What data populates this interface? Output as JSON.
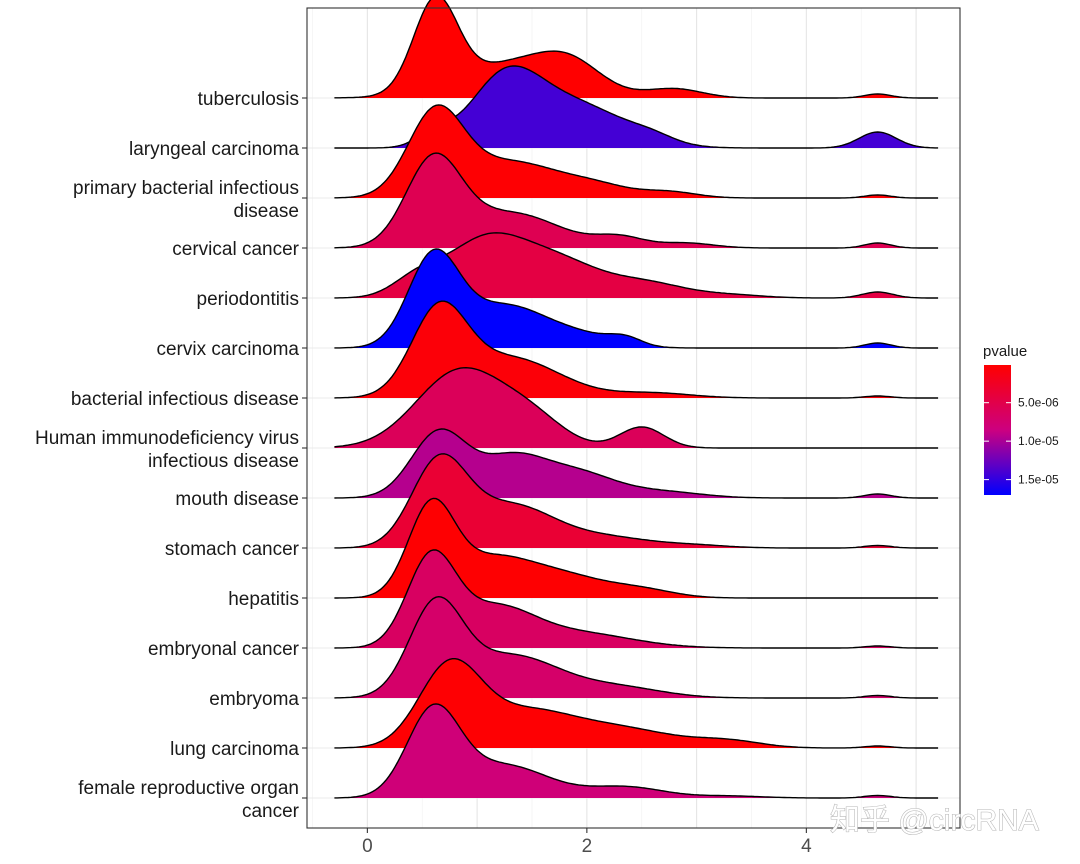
{
  "chart_data": {
    "type": "ridgeline",
    "x_ticks": [
      0,
      2,
      4
    ],
    "xlim": [
      -0.55,
      5.4
    ],
    "grid": true,
    "legend": {
      "title": "pvalue",
      "position": "right",
      "ticks": [
        {
          "label": "5.0e-06",
          "value": 5e-06
        },
        {
          "label": "1.0e-05",
          "value": 1e-05
        },
        {
          "label": "1.5e-05",
          "value": 1.5e-05
        }
      ],
      "range": [
        1e-07,
        1.7e-05
      ],
      "color_low": "#ff0000",
      "color_mid": "#cc0080",
      "color_high": "#0000ff"
    },
    "series": [
      {
        "name": "tuberculosis",
        "pvalue": 1e-07,
        "peaks": [
          [
            0.62,
            1.8,
            0.2
          ],
          [
            1.35,
            0.7,
            0.5
          ],
          [
            1.85,
            0.45,
            0.28
          ],
          [
            2.8,
            0.18,
            0.25
          ],
          [
            4.65,
            0.08,
            0.12
          ]
        ]
      },
      {
        "name": "laryngeal carcinoma",
        "pvalue": 1.42e-05,
        "peaks": [
          [
            0.6,
            0.25,
            0.15
          ],
          [
            1.25,
            1.3,
            0.32
          ],
          [
            1.9,
            0.85,
            0.45
          ],
          [
            2.6,
            0.12,
            0.2
          ],
          [
            4.65,
            0.32,
            0.17
          ]
        ]
      },
      {
        "name": "primary bacterial infectious disease",
        "pvalue": 3e-07,
        "peaks": [
          [
            0.62,
            1.62,
            0.25
          ],
          [
            1.3,
            0.72,
            0.45
          ],
          [
            2.1,
            0.2,
            0.3
          ],
          [
            2.75,
            0.12,
            0.25
          ],
          [
            4.65,
            0.06,
            0.12
          ]
        ]
      },
      {
        "name": "cervical cancer",
        "pvalue": 5.5e-06,
        "peaks": [
          [
            0.6,
            1.68,
            0.25
          ],
          [
            1.3,
            0.7,
            0.45
          ],
          [
            2.3,
            0.2,
            0.22
          ],
          [
            2.9,
            0.1,
            0.25
          ],
          [
            4.65,
            0.1,
            0.12
          ]
        ]
      },
      {
        "name": "periodontitis",
        "pvalue": 4.5e-06,
        "peaks": [
          [
            0.45,
            0.35,
            0.22
          ],
          [
            1.05,
            1.05,
            0.35
          ],
          [
            1.7,
            0.75,
            0.4
          ],
          [
            2.55,
            0.28,
            0.35
          ],
          [
            3.3,
            0.06,
            0.3
          ],
          [
            4.65,
            0.12,
            0.14
          ]
        ]
      },
      {
        "name": "cervix carcinoma",
        "pvalue": 1.7e-05,
        "peaks": [
          [
            0.6,
            1.74,
            0.23
          ],
          [
            1.25,
            0.85,
            0.4
          ],
          [
            2.0,
            0.18,
            0.3
          ],
          [
            2.35,
            0.15,
            0.15
          ],
          [
            4.65,
            0.1,
            0.12
          ]
        ]
      },
      {
        "name": "bacterial infectious disease",
        "pvalue": 6e-07,
        "peaks": [
          [
            0.65,
            1.64,
            0.25
          ],
          [
            1.3,
            0.8,
            0.45
          ],
          [
            2.6,
            0.1,
            0.35
          ],
          [
            4.65,
            0.04,
            0.12
          ]
        ]
      },
      {
        "name": "Human immunodeficiency virus infectious disease",
        "pvalue": 6e-06,
        "peaks": [
          [
            0.85,
            1.55,
            0.4
          ],
          [
            1.5,
            0.5,
            0.3
          ],
          [
            2.5,
            0.42,
            0.2
          ]
        ]
      },
      {
        "name": "mouth disease",
        "pvalue": 9.5e-06,
        "peaks": [
          [
            0.65,
            1.3,
            0.25
          ],
          [
            1.3,
            0.75,
            0.3
          ],
          [
            1.9,
            0.5,
            0.35
          ],
          [
            2.7,
            0.12,
            0.35
          ],
          [
            4.65,
            0.08,
            0.12
          ]
        ]
      },
      {
        "name": "stomach cancer",
        "pvalue": 3.5e-06,
        "peaks": [
          [
            0.65,
            1.64,
            0.25
          ],
          [
            1.3,
            0.85,
            0.4
          ],
          [
            2.2,
            0.2,
            0.4
          ],
          [
            3.0,
            0.05,
            0.3
          ],
          [
            4.65,
            0.05,
            0.12
          ]
        ]
      },
      {
        "name": "hepatitis",
        "pvalue": 2e-07,
        "peaks": [
          [
            0.58,
            1.74,
            0.21
          ],
          [
            1.1,
            0.7,
            0.35
          ],
          [
            1.75,
            0.45,
            0.4
          ],
          [
            2.5,
            0.15,
            0.3
          ]
        ]
      },
      {
        "name": "embryonal cancer",
        "pvalue": 6.5e-06,
        "peaks": [
          [
            0.58,
            1.74,
            0.22
          ],
          [
            1.15,
            0.75,
            0.35
          ],
          [
            1.9,
            0.3,
            0.5
          ],
          [
            4.65,
            0.04,
            0.12
          ]
        ]
      },
      {
        "name": "embryoma",
        "pvalue": 7e-06,
        "peaks": [
          [
            0.62,
            1.74,
            0.24
          ],
          [
            1.3,
            0.85,
            0.45
          ],
          [
            2.3,
            0.2,
            0.4
          ],
          [
            4.65,
            0.05,
            0.12
          ]
        ]
      },
      {
        "name": "lung carcinoma",
        "pvalue": 3e-07,
        "peaks": [
          [
            0.75,
            1.6,
            0.28
          ],
          [
            1.4,
            0.6,
            0.4
          ],
          [
            2.2,
            0.42,
            0.55
          ],
          [
            3.3,
            0.12,
            0.3
          ],
          [
            4.65,
            0.04,
            0.12
          ]
        ]
      },
      {
        "name": "female reproductive organ cancer",
        "pvalue": 8e-06,
        "peaks": [
          [
            0.6,
            1.7,
            0.24
          ],
          [
            1.25,
            0.65,
            0.4
          ],
          [
            2.35,
            0.22,
            0.35
          ],
          [
            3.3,
            0.04,
            0.3
          ],
          [
            4.65,
            0.05,
            0.12
          ]
        ]
      }
    ]
  },
  "watermark": "知乎 @circRNA"
}
